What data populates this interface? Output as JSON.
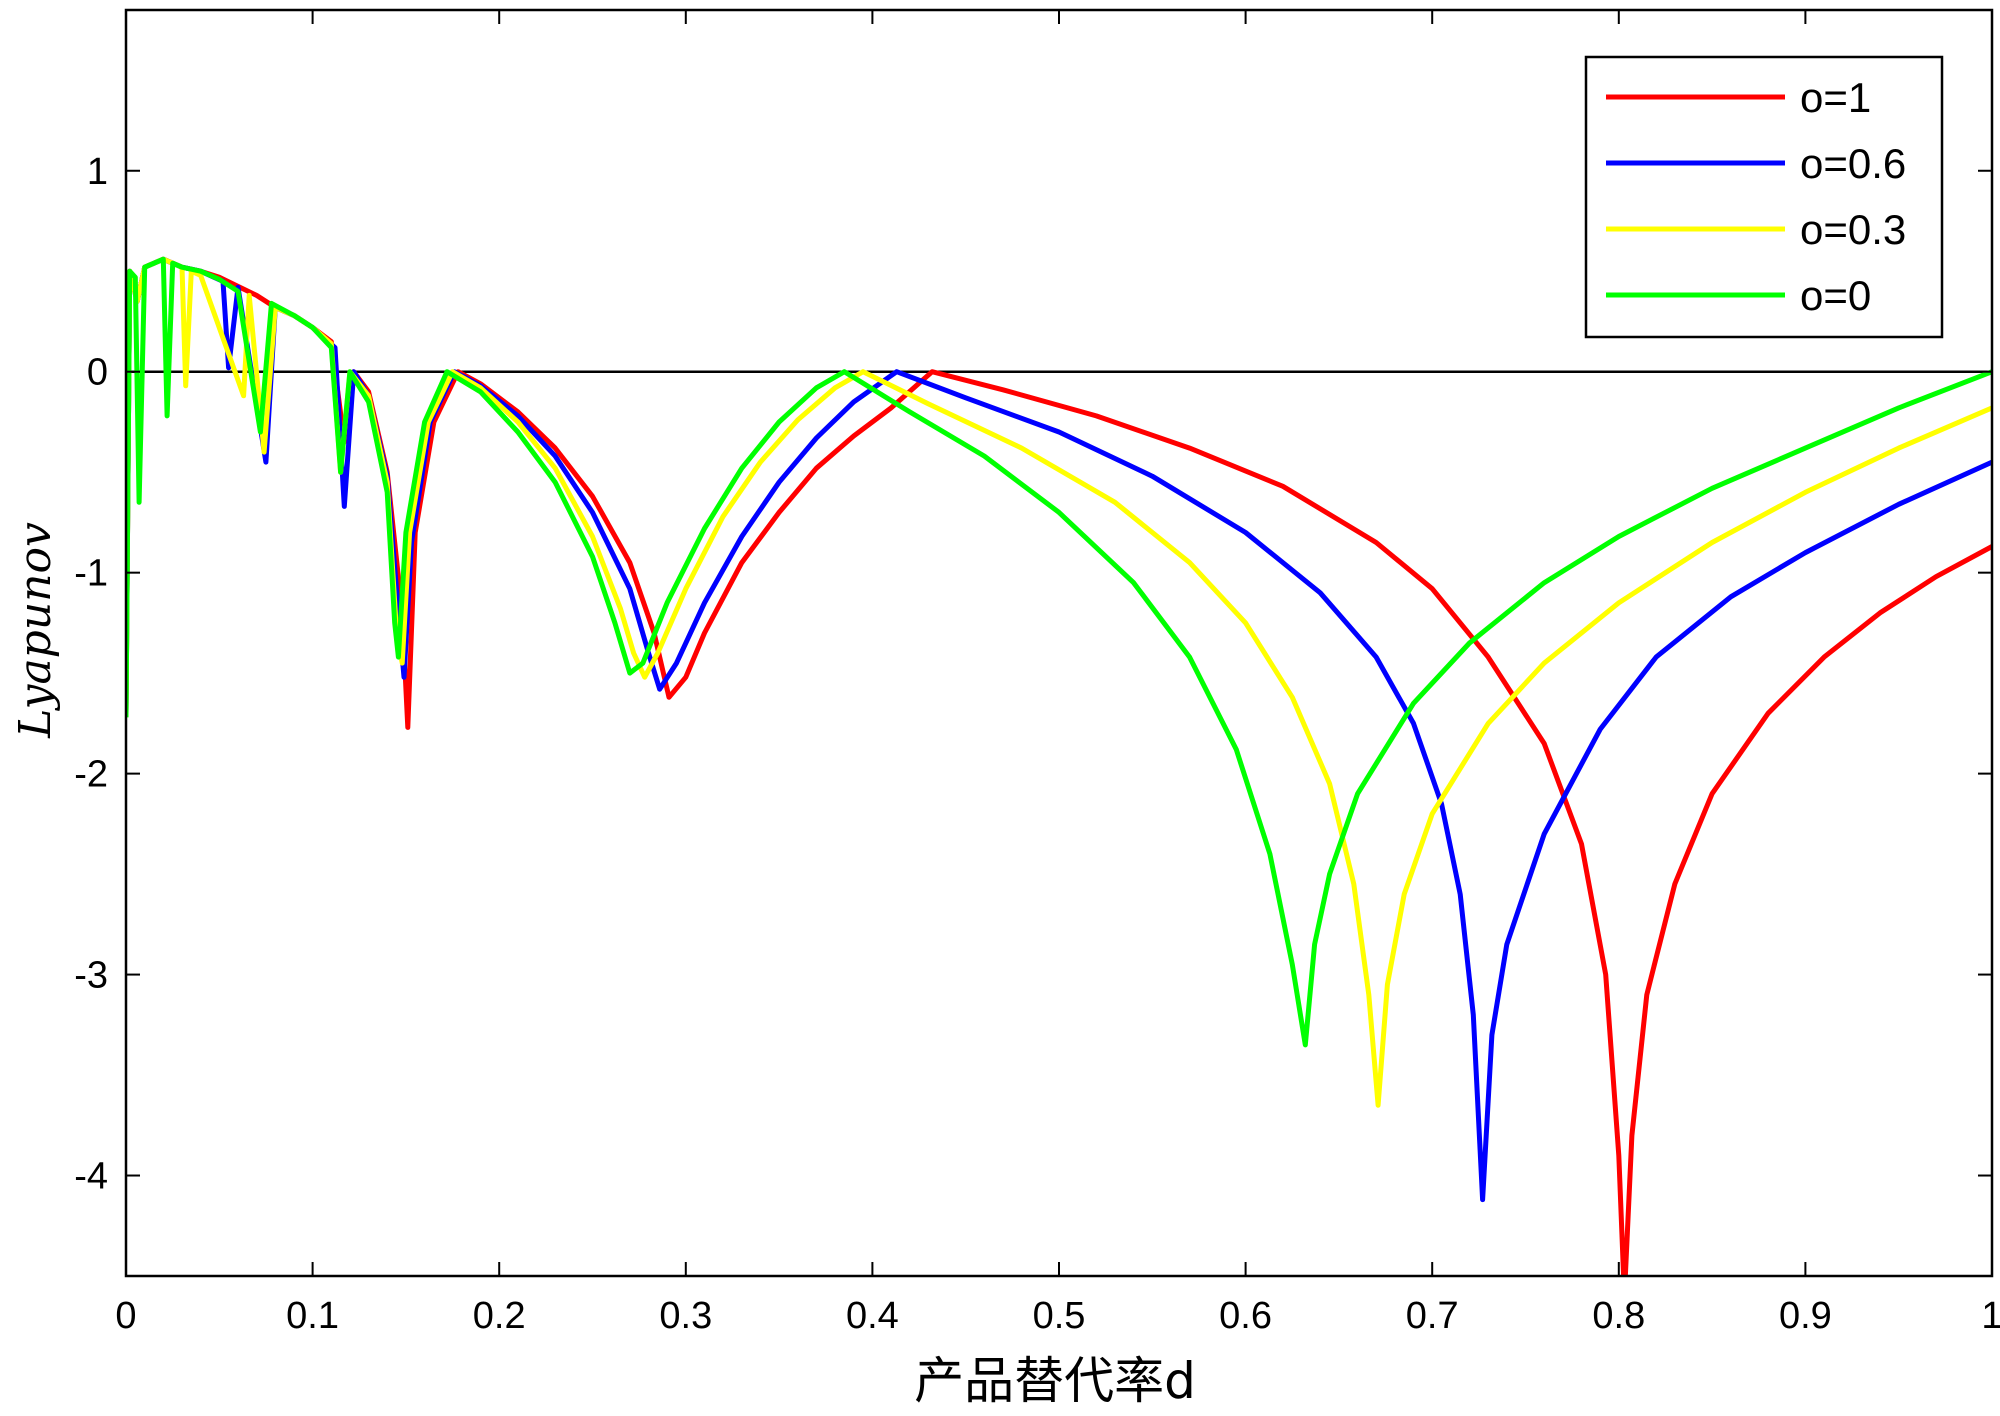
{
  "chart_data": {
    "type": "line",
    "xlabel": "产品替代率d",
    "ylabel": "Lyapunov",
    "xlim": [
      0,
      1
    ],
    "ylim": [
      -4.5,
      1.8
    ],
    "xticks": [
      "0",
      "0.1",
      "0.2",
      "0.3",
      "0.4",
      "0.5",
      "0.6",
      "0.7",
      "0.8",
      "0.9",
      "1"
    ],
    "yticks": [
      "1",
      "0",
      "-1",
      "-2",
      "-3",
      "-4"
    ],
    "zero_line": true,
    "legend_position": "top-right",
    "series": [
      {
        "name": "o=1",
        "color": "#ff0000",
        "points": [
          [
            0,
            -1.7
          ],
          [
            0.002,
            0.5
          ],
          [
            0.006,
            0.35
          ],
          [
            0.01,
            0.52
          ],
          [
            0.02,
            0.56
          ],
          [
            0.03,
            0.52
          ],
          [
            0.04,
            0.5
          ],
          [
            0.05,
            0.47
          ],
          [
            0.07,
            0.38
          ],
          [
            0.08,
            0.32
          ],
          [
            0.09,
            0.28
          ],
          [
            0.1,
            0.22
          ],
          [
            0.11,
            0.15
          ],
          [
            0.117,
            -0.35
          ],
          [
            0.122,
            0
          ],
          [
            0.13,
            -0.1
          ],
          [
            0.14,
            -0.5
          ],
          [
            0.148,
            -1.2
          ],
          [
            0.151,
            -1.77
          ],
          [
            0.155,
            -0.8
          ],
          [
            0.165,
            -0.25
          ],
          [
            0.178,
            0
          ],
          [
            0.19,
            -0.06
          ],
          [
            0.21,
            -0.2
          ],
          [
            0.23,
            -0.38
          ],
          [
            0.25,
            -0.62
          ],
          [
            0.27,
            -0.95
          ],
          [
            0.283,
            -1.3
          ],
          [
            0.291,
            -1.62
          ],
          [
            0.3,
            -1.52
          ],
          [
            0.31,
            -1.3
          ],
          [
            0.33,
            -0.95
          ],
          [
            0.35,
            -0.7
          ],
          [
            0.37,
            -0.48
          ],
          [
            0.39,
            -0.32
          ],
          [
            0.41,
            -0.18
          ],
          [
            0.432,
            0
          ],
          [
            0.47,
            -0.09
          ],
          [
            0.52,
            -0.22
          ],
          [
            0.57,
            -0.38
          ],
          [
            0.62,
            -0.57
          ],
          [
            0.67,
            -0.85
          ],
          [
            0.7,
            -1.08
          ],
          [
            0.73,
            -1.42
          ],
          [
            0.76,
            -1.85
          ],
          [
            0.78,
            -2.35
          ],
          [
            0.793,
            -3.0
          ],
          [
            0.8,
            -3.9
          ],
          [
            0.803,
            -4.6
          ],
          [
            0.807,
            -3.8
          ],
          [
            0.815,
            -3.1
          ],
          [
            0.83,
            -2.55
          ],
          [
            0.85,
            -2.1
          ],
          [
            0.88,
            -1.7
          ],
          [
            0.91,
            -1.42
          ],
          [
            0.94,
            -1.2
          ],
          [
            0.97,
            -1.02
          ],
          [
            1,
            -0.87
          ]
        ]
      },
      {
        "name": "o=0.6",
        "color": "#0000ff",
        "points": [
          [
            0,
            -1.7
          ],
          [
            0.002,
            0.5
          ],
          [
            0.006,
            0.35
          ],
          [
            0.01,
            0.52
          ],
          [
            0.02,
            0.56
          ],
          [
            0.03,
            0.52
          ],
          [
            0.04,
            0.5
          ],
          [
            0.052,
            0.45
          ],
          [
            0.055,
            0.02
          ],
          [
            0.06,
            0.42
          ],
          [
            0.075,
            -0.45
          ],
          [
            0.08,
            0.32
          ],
          [
            0.09,
            0.28
          ],
          [
            0.1,
            0.22
          ],
          [
            0.112,
            0.12
          ],
          [
            0.117,
            -0.67
          ],
          [
            0.122,
            0
          ],
          [
            0.13,
            -0.12
          ],
          [
            0.14,
            -0.52
          ],
          [
            0.146,
            -1.2
          ],
          [
            0.149,
            -1.52
          ],
          [
            0.153,
            -0.85
          ],
          [
            0.163,
            -0.25
          ],
          [
            0.176,
            0
          ],
          [
            0.19,
            -0.07
          ],
          [
            0.21,
            -0.22
          ],
          [
            0.23,
            -0.42
          ],
          [
            0.25,
            -0.7
          ],
          [
            0.27,
            -1.08
          ],
          [
            0.28,
            -1.4
          ],
          [
            0.286,
            -1.58
          ],
          [
            0.295,
            -1.45
          ],
          [
            0.31,
            -1.15
          ],
          [
            0.33,
            -0.82
          ],
          [
            0.35,
            -0.55
          ],
          [
            0.37,
            -0.33
          ],
          [
            0.39,
            -0.15
          ],
          [
            0.413,
            0
          ],
          [
            0.45,
            -0.13
          ],
          [
            0.5,
            -0.3
          ],
          [
            0.55,
            -0.52
          ],
          [
            0.6,
            -0.8
          ],
          [
            0.64,
            -1.1
          ],
          [
            0.67,
            -1.42
          ],
          [
            0.69,
            -1.75
          ],
          [
            0.705,
            -2.15
          ],
          [
            0.715,
            -2.6
          ],
          [
            0.722,
            -3.2
          ],
          [
            0.727,
            -4.12
          ],
          [
            0.732,
            -3.3
          ],
          [
            0.74,
            -2.85
          ],
          [
            0.76,
            -2.3
          ],
          [
            0.79,
            -1.78
          ],
          [
            0.82,
            -1.42
          ],
          [
            0.86,
            -1.12
          ],
          [
            0.9,
            -0.9
          ],
          [
            0.95,
            -0.66
          ],
          [
            1,
            -0.45
          ]
        ]
      },
      {
        "name": "o=0.3",
        "color": "#ffff00",
        "points": [
          [
            0,
            -1.7
          ],
          [
            0.002,
            0.5
          ],
          [
            0.006,
            0.35
          ],
          [
            0.01,
            0.52
          ],
          [
            0.02,
            0.56
          ],
          [
            0.03,
            0.52
          ],
          [
            0.032,
            -0.07
          ],
          [
            0.035,
            0.5
          ],
          [
            0.04,
            0.48
          ],
          [
            0.063,
            -0.12
          ],
          [
            0.066,
            0.38
          ],
          [
            0.074,
            -0.4
          ],
          [
            0.08,
            0.32
          ],
          [
            0.09,
            0.28
          ],
          [
            0.1,
            0.22
          ],
          [
            0.11,
            0.14
          ],
          [
            0.115,
            -0.5
          ],
          [
            0.12,
            0
          ],
          [
            0.13,
            -0.12
          ],
          [
            0.14,
            -0.55
          ],
          [
            0.145,
            -1.3
          ],
          [
            0.148,
            -1.45
          ],
          [
            0.152,
            -0.8
          ],
          [
            0.162,
            -0.25
          ],
          [
            0.175,
            0
          ],
          [
            0.19,
            -0.08
          ],
          [
            0.21,
            -0.25
          ],
          [
            0.23,
            -0.48
          ],
          [
            0.25,
            -0.82
          ],
          [
            0.265,
            -1.18
          ],
          [
            0.272,
            -1.4
          ],
          [
            0.278,
            -1.52
          ],
          [
            0.285,
            -1.4
          ],
          [
            0.3,
            -1.08
          ],
          [
            0.32,
            -0.72
          ],
          [
            0.34,
            -0.45
          ],
          [
            0.36,
            -0.24
          ],
          [
            0.38,
            -0.08
          ],
          [
            0.395,
            0
          ],
          [
            0.43,
            -0.16
          ],
          [
            0.48,
            -0.38
          ],
          [
            0.53,
            -0.65
          ],
          [
            0.57,
            -0.95
          ],
          [
            0.6,
            -1.25
          ],
          [
            0.625,
            -1.62
          ],
          [
            0.645,
            -2.05
          ],
          [
            0.658,
            -2.55
          ],
          [
            0.666,
            -3.1
          ],
          [
            0.671,
            -3.65
          ],
          [
            0.676,
            -3.05
          ],
          [
            0.685,
            -2.6
          ],
          [
            0.7,
            -2.2
          ],
          [
            0.73,
            -1.75
          ],
          [
            0.76,
            -1.45
          ],
          [
            0.8,
            -1.15
          ],
          [
            0.85,
            -0.85
          ],
          [
            0.9,
            -0.6
          ],
          [
            0.95,
            -0.38
          ],
          [
            1,
            -0.18
          ]
        ]
      },
      {
        "name": "o=0",
        "color": "#00ff00",
        "points": [
          [
            0,
            -1.72
          ],
          [
            0.002,
            0.5
          ],
          [
            0.005,
            0.47
          ],
          [
            0.007,
            -0.65
          ],
          [
            0.01,
            0.52
          ],
          [
            0.015,
            0.54
          ],
          [
            0.02,
            0.56
          ],
          [
            0.022,
            -0.22
          ],
          [
            0.025,
            0.54
          ],
          [
            0.03,
            0.52
          ],
          [
            0.04,
            0.5
          ],
          [
            0.05,
            0.46
          ],
          [
            0.06,
            0.4
          ],
          [
            0.072,
            -0.3
          ],
          [
            0.078,
            0.34
          ],
          [
            0.09,
            0.28
          ],
          [
            0.1,
            0.22
          ],
          [
            0.11,
            0.12
          ],
          [
            0.115,
            -0.5
          ],
          [
            0.12,
            0
          ],
          [
            0.13,
            -0.15
          ],
          [
            0.14,
            -0.6
          ],
          [
            0.144,
            -1.25
          ],
          [
            0.146,
            -1.42
          ],
          [
            0.15,
            -0.8
          ],
          [
            0.16,
            -0.25
          ],
          [
            0.172,
            0
          ],
          [
            0.19,
            -0.1
          ],
          [
            0.21,
            -0.3
          ],
          [
            0.23,
            -0.55
          ],
          [
            0.25,
            -0.92
          ],
          [
            0.262,
            -1.25
          ],
          [
            0.27,
            -1.5
          ],
          [
            0.277,
            -1.45
          ],
          [
            0.29,
            -1.15
          ],
          [
            0.31,
            -0.78
          ],
          [
            0.33,
            -0.48
          ],
          [
            0.35,
            -0.25
          ],
          [
            0.37,
            -0.08
          ],
          [
            0.385,
            0
          ],
          [
            0.42,
            -0.2
          ],
          [
            0.46,
            -0.42
          ],
          [
            0.5,
            -0.7
          ],
          [
            0.54,
            -1.05
          ],
          [
            0.57,
            -1.42
          ],
          [
            0.595,
            -1.88
          ],
          [
            0.613,
            -2.4
          ],
          [
            0.625,
            -2.95
          ],
          [
            0.632,
            -3.35
          ],
          [
            0.637,
            -2.85
          ],
          [
            0.645,
            -2.5
          ],
          [
            0.66,
            -2.1
          ],
          [
            0.69,
            -1.65
          ],
          [
            0.72,
            -1.35
          ],
          [
            0.76,
            -1.05
          ],
          [
            0.8,
            -0.82
          ],
          [
            0.85,
            -0.58
          ],
          [
            0.9,
            -0.38
          ],
          [
            0.95,
            -0.18
          ],
          [
            1,
            0
          ]
        ]
      }
    ]
  }
}
